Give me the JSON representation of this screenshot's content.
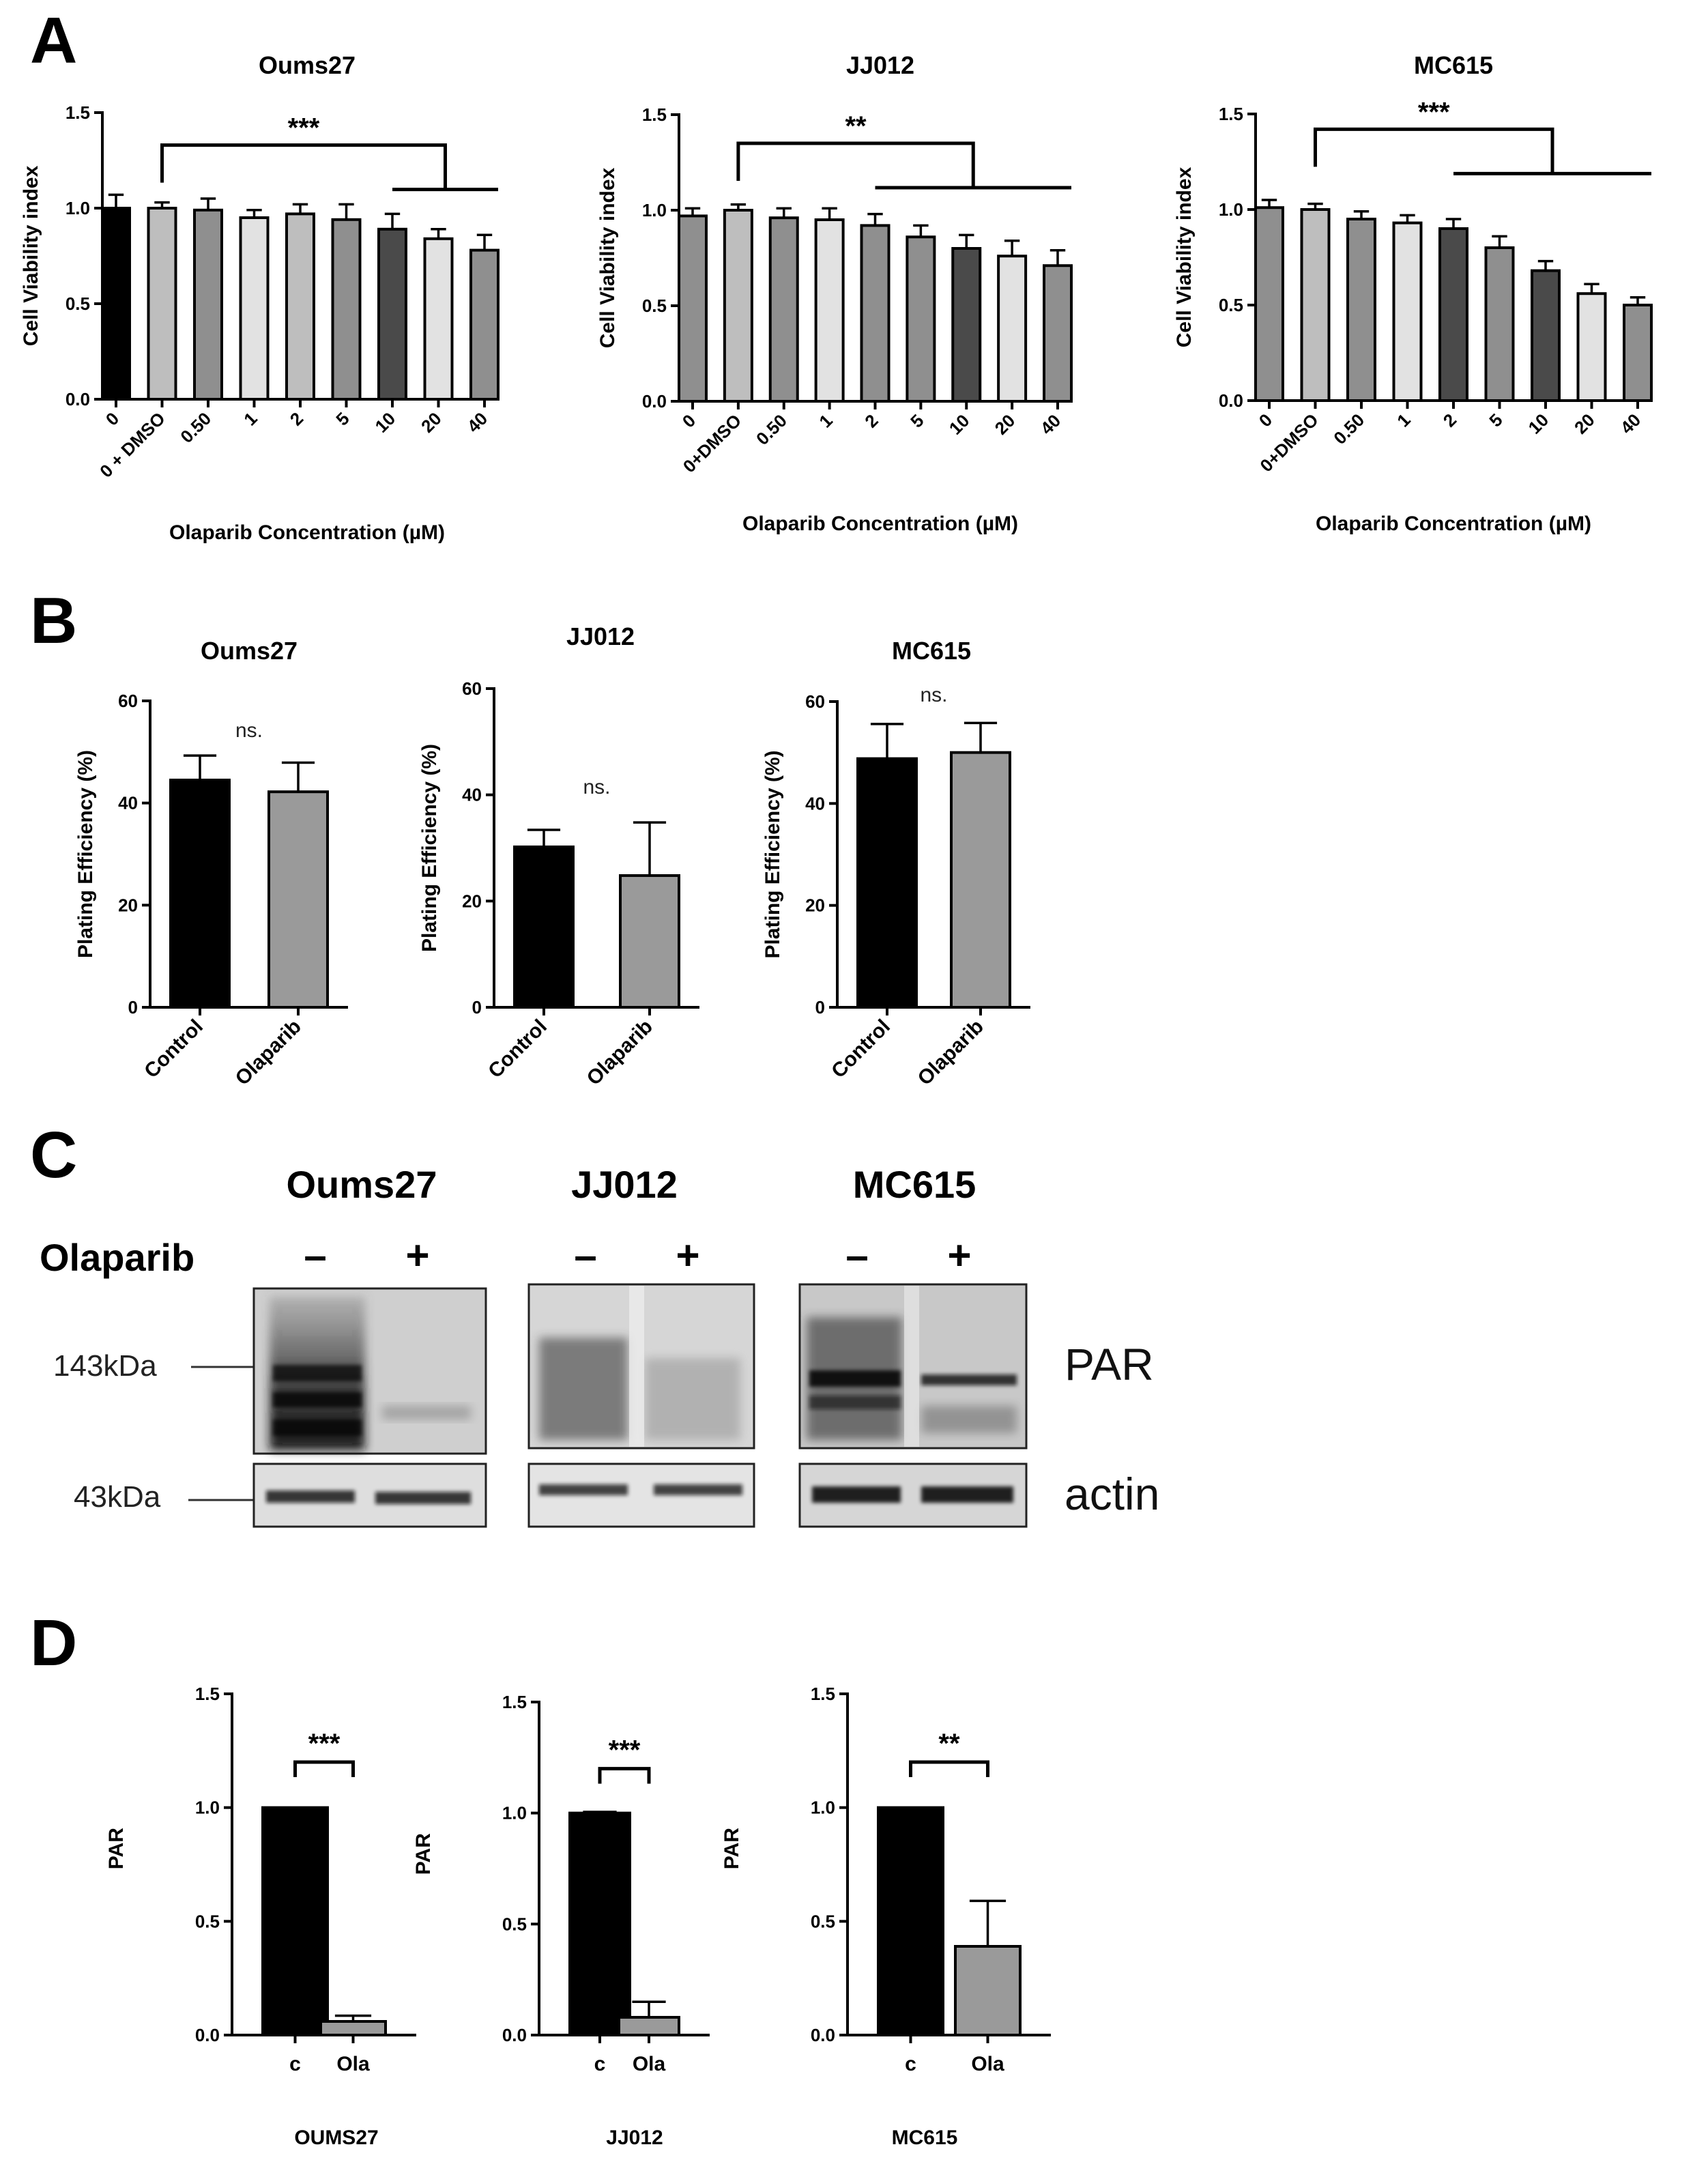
{
  "panel_letters": {
    "a": "A",
    "b": "B",
    "c": "C",
    "d": "D"
  },
  "colors": {
    "black": "#000000",
    "dark": "#4a4a4a",
    "mid": "#8f8f8f",
    "light": "#bebebe",
    "pale": "#e2e2e2"
  },
  "chart_data": [
    {
      "id": "A1",
      "type": "bar",
      "title": "Oums27",
      "xlabel": "Olaparib  Concentration (µM)",
      "ylabel": "Cell Viability index",
      "ylim": [
        0,
        1.5
      ],
      "yticks": [
        "0.0",
        "0.5",
        "1.0",
        "1.5"
      ],
      "categories": [
        "0",
        "0 + DMSO",
        "0.50",
        "1",
        "2",
        "5",
        "10",
        "20",
        "40"
      ],
      "values": [
        1.0,
        1.0,
        0.99,
        0.95,
        0.97,
        0.94,
        0.89,
        0.84,
        0.78
      ],
      "errors": [
        0.07,
        0.03,
        0.06,
        0.04,
        0.05,
        0.08,
        0.08,
        0.05,
        0.08
      ],
      "fills": [
        "#000000",
        "#bebebe",
        "#8f8f8f",
        "#e2e2e2",
        "#bebebe",
        "#8f8f8f",
        "#4a4a4a",
        "#e2e2e2",
        "#8f8f8f"
      ],
      "significance": {
        "label": "***",
        "from": 1,
        "to_start": 6,
        "to_end": 8,
        "y": 1.33
      }
    },
    {
      "id": "A2",
      "type": "bar",
      "title": "JJ012",
      "xlabel": "Olaparib  Concentration (µM)",
      "ylabel": "Cell Viability index",
      "ylim": [
        0,
        1.5
      ],
      "yticks": [
        "0.0",
        "0.5",
        "1.0",
        "1.5"
      ],
      "categories": [
        "0",
        "0+DMSO",
        "0.50",
        "1",
        "2",
        "5",
        "10",
        "20",
        "40"
      ],
      "values": [
        0.97,
        1.0,
        0.96,
        0.95,
        0.92,
        0.86,
        0.8,
        0.76,
        0.71
      ],
      "errors": [
        0.04,
        0.03,
        0.05,
        0.06,
        0.06,
        0.06,
        0.07,
        0.08,
        0.08
      ],
      "fills": [
        "#8f8f8f",
        "#bebebe",
        "#8f8f8f",
        "#e2e2e2",
        "#8f8f8f",
        "#8f8f8f",
        "#4a4a4a",
        "#e2e2e2",
        "#8f8f8f"
      ],
      "significance": {
        "label": "**",
        "from": 1,
        "to_start": 4,
        "to_end": 8,
        "y": 1.35
      }
    },
    {
      "id": "A3",
      "type": "bar",
      "title": "MC615",
      "xlabel": "Olaparib  Concentration (µM)",
      "ylabel": "Cell Viability index",
      "ylim": [
        0,
        1.5
      ],
      "yticks": [
        "0.0",
        "0.5",
        "1.0",
        "1.5"
      ],
      "categories": [
        "0",
        "0+DMSO",
        "0.50",
        "1",
        "2",
        "5",
        "10",
        "20",
        "40"
      ],
      "values": [
        1.01,
        1.0,
        0.95,
        0.93,
        0.9,
        0.8,
        0.68,
        0.56,
        0.5
      ],
      "errors": [
        0.04,
        0.03,
        0.04,
        0.04,
        0.05,
        0.06,
        0.05,
        0.05,
        0.04
      ],
      "fills": [
        "#8f8f8f",
        "#bebebe",
        "#8f8f8f",
        "#e2e2e2",
        "#4a4a4a",
        "#8f8f8f",
        "#4a4a4a",
        "#e2e2e2",
        "#8f8f8f"
      ],
      "significance": {
        "label": "***",
        "from": 1,
        "to_start": 4,
        "to_end": 8,
        "y": 1.42
      }
    },
    {
      "id": "B1",
      "type": "bar",
      "title": "Oums27",
      "xlabel": "",
      "ylabel": "Plating Efficiency (%)",
      "ylim": [
        0,
        60
      ],
      "yticks": [
        "0",
        "20",
        "40",
        "60"
      ],
      "categories": [
        "Control",
        "Olaparib"
      ],
      "values": [
        44.5,
        42.2
      ],
      "errors": [
        4.8,
        5.7
      ],
      "fills": [
        "#000000",
        "#9a9a9a"
      ],
      "annotation": "ns."
    },
    {
      "id": "B2",
      "type": "bar",
      "title": "JJ012",
      "xlabel": "",
      "ylabel": "Plating Efficiency (%)",
      "ylim": [
        0,
        60
      ],
      "yticks": [
        "0",
        "20",
        "40",
        "60"
      ],
      "categories": [
        "Control",
        "Olaparib"
      ],
      "values": [
        30.2,
        24.8
      ],
      "errors": [
        3.2,
        10.0
      ],
      "fills": [
        "#000000",
        "#9a9a9a"
      ],
      "annotation": "ns."
    },
    {
      "id": "B3",
      "type": "bar",
      "title": "MC615",
      "xlabel": "",
      "ylabel": "Plating Efficiency (%)",
      "ylim": [
        0,
        60
      ],
      "yticks": [
        "0",
        "20",
        "40",
        "60"
      ],
      "categories": [
        "Control",
        "Olaparib"
      ],
      "values": [
        48.8,
        50.0
      ],
      "errors": [
        6.8,
        5.8
      ],
      "fills": [
        "#000000",
        "#9a9a9a"
      ],
      "annotation": "ns."
    },
    {
      "id": "D1",
      "type": "bar",
      "title": "",
      "xlabel": "OUMS27",
      "ylabel": "PAR",
      "ylim": [
        0,
        1.5
      ],
      "yticks": [
        "0.0",
        "0.5",
        "1.0",
        "1.5"
      ],
      "categories": [
        "c",
        "Ola"
      ],
      "values": [
        1.0,
        0.06
      ],
      "errors": [
        0.0,
        0.025
      ],
      "fills": [
        "#000000",
        "#9a9a9a"
      ],
      "significance": {
        "label": "***"
      }
    },
    {
      "id": "D2",
      "type": "bar",
      "title": "",
      "xlabel": "JJ012",
      "ylabel": "PAR",
      "ylim": [
        0,
        1.5
      ],
      "yticks": [
        "0.0",
        "0.5",
        "1.0",
        "1.5"
      ],
      "categories": [
        "c",
        "Ola"
      ],
      "values": [
        1.0,
        0.08
      ],
      "errors": [
        0.005,
        0.07
      ],
      "fills": [
        "#000000",
        "#9a9a9a"
      ],
      "significance": {
        "label": "***"
      }
    },
    {
      "id": "D3",
      "type": "bar",
      "title": "",
      "xlabel": "MC615",
      "ylabel": "PAR",
      "ylim": [
        0,
        1.5
      ],
      "yticks": [
        "0.0",
        "0.5",
        "1.0",
        "1.5"
      ],
      "categories": [
        "c",
        "Ola"
      ],
      "values": [
        1.0,
        0.39
      ],
      "errors": [
        0.0,
        0.2
      ],
      "fills": [
        "#000000",
        "#9a9a9a"
      ],
      "significance": {
        "label": "**"
      }
    }
  ],
  "western_blot": {
    "treatment_label": "Olaparib",
    "cell_lines": [
      "Oums27",
      "JJ012",
      "MC615"
    ],
    "lane_signs": [
      "–",
      "+"
    ],
    "markers": [
      "143kDa",
      "43kDa"
    ],
    "bands": [
      "PAR",
      "actin"
    ]
  }
}
